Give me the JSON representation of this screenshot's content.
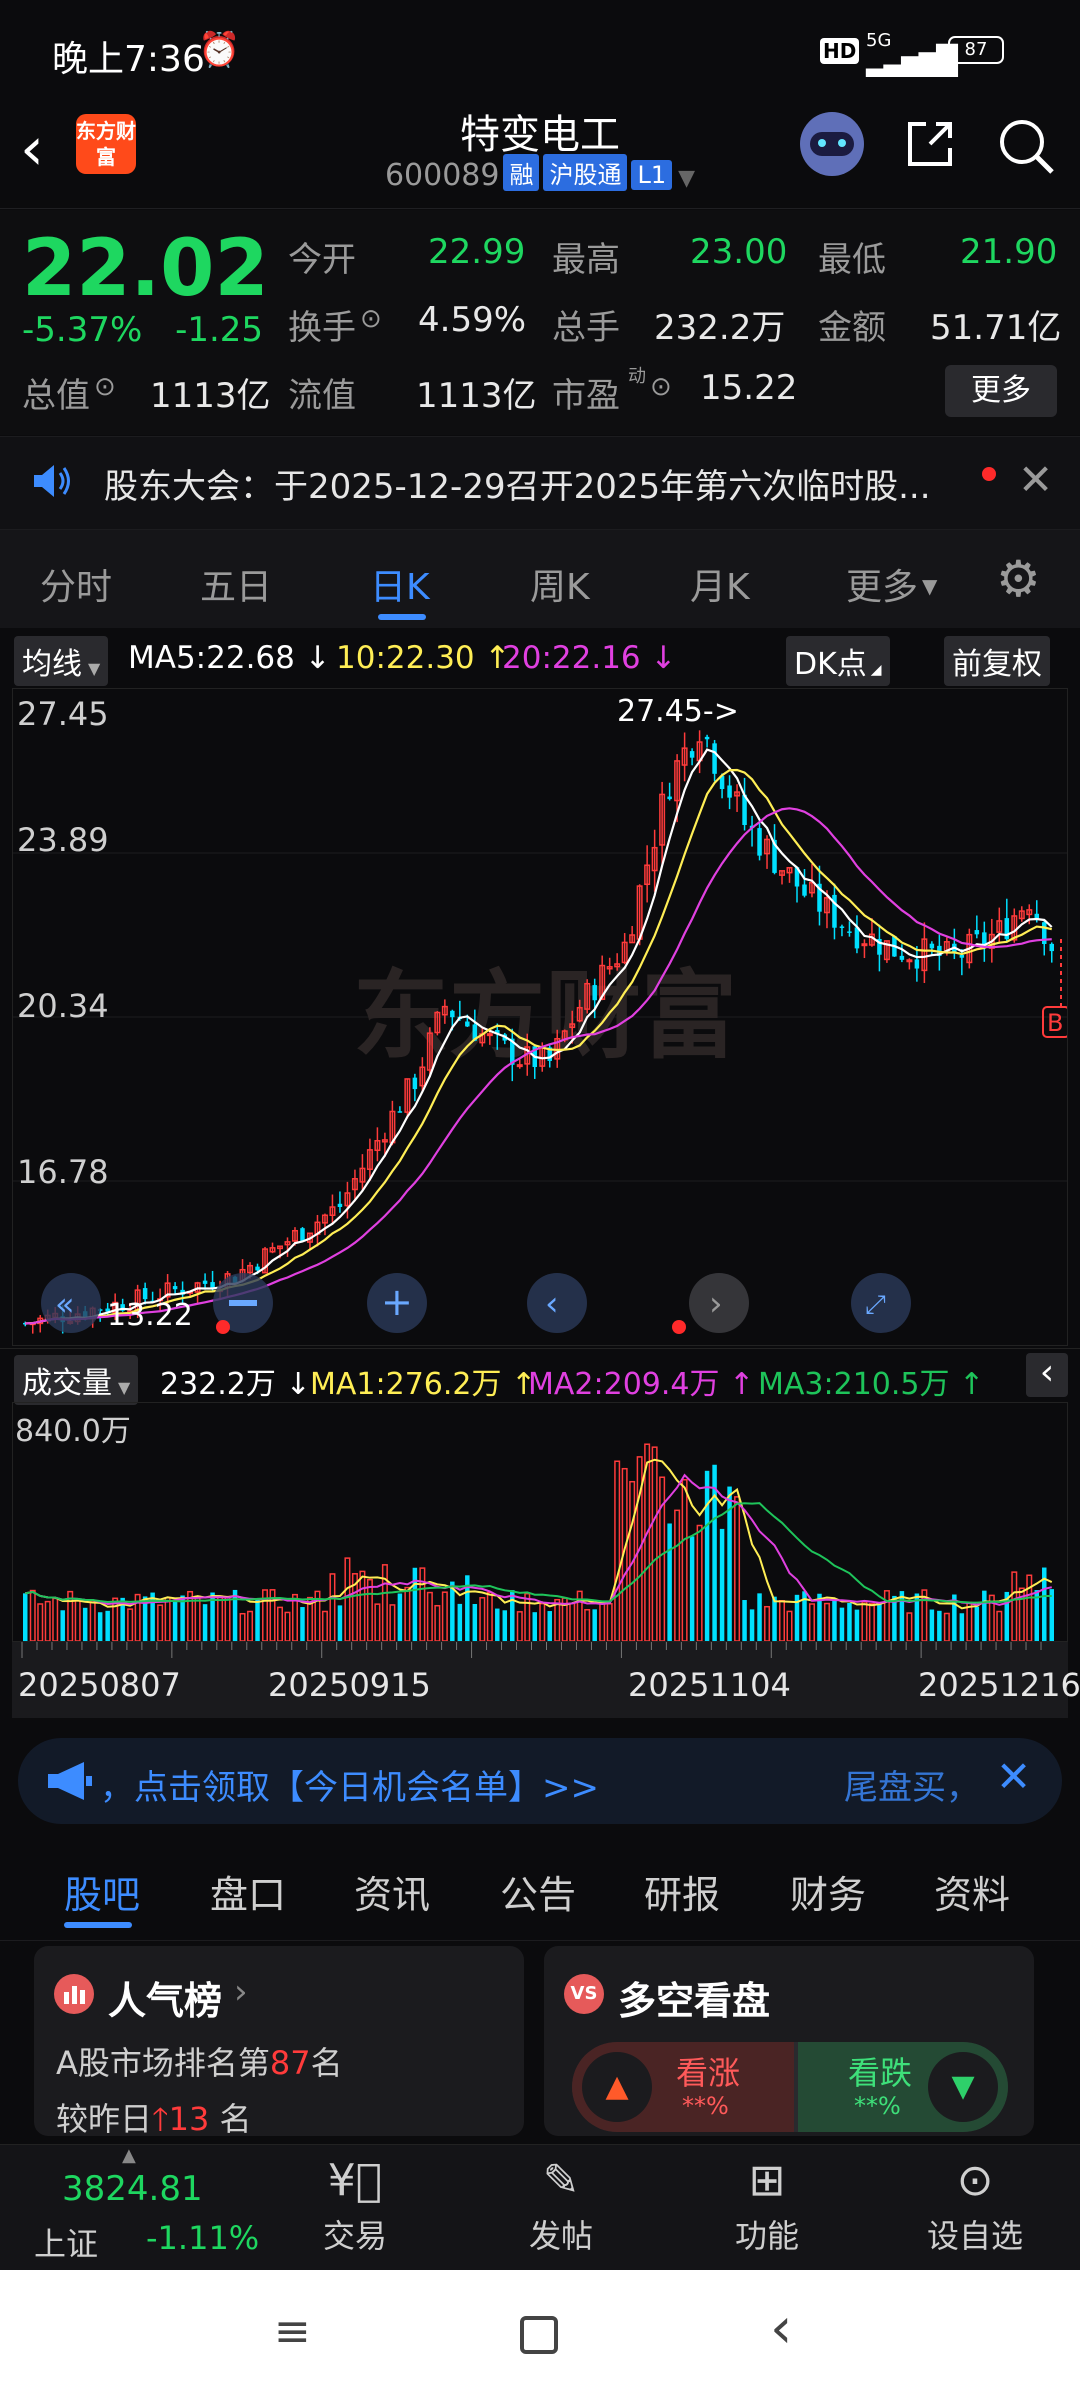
{
  "status": {
    "time": "晚上7:36",
    "battery": "87",
    "network": "5G"
  },
  "header": {
    "logo_text": "东方财富",
    "name": "特变电工",
    "code": "600089",
    "tags": [
      "融",
      "沪股通",
      "L1"
    ]
  },
  "quote": {
    "price": "22.02",
    "change_pct": "-5.37%",
    "change": "-1.25",
    "open_label": "今开",
    "open": "22.99",
    "high_label": "最高",
    "high": "23.00",
    "low_label": "最低",
    "low": "21.90",
    "turnover_label": "换手",
    "turnover": "4.59%",
    "volume_label": "总手",
    "volume": "232.2万",
    "amount_label": "金额",
    "amount": "51.71亿",
    "mcap_label": "总值",
    "mcap": "1113亿",
    "float_label": "流值",
    "float": "1113亿",
    "pe_label": "市盈",
    "pe_sup": "动",
    "pe": "15.22",
    "more_label": "更多"
  },
  "notice": {
    "text": "股东大会：于2025-12-29召开2025年第六次临时股..."
  },
  "tabs": [
    {
      "label": "分时"
    },
    {
      "label": "五日"
    },
    {
      "label": "日K"
    },
    {
      "label": "周K"
    },
    {
      "label": "月K"
    },
    {
      "label": "更多"
    }
  ],
  "ma_row": {
    "selector": "均线",
    "ma5": "MA5:22.68",
    "ma10": "10:22.30",
    "ma20": "20:22.16",
    "dk": "DK点",
    "adjust": "前复权"
  },
  "chart_data": {
    "type": "candlestick",
    "y_ticks": [
      "27.45",
      "23.89",
      "20.34",
      "16.78"
    ],
    "ylim": [
      12.8,
      27.9
    ],
    "high_annotation": "27.45->",
    "low_annotation": "13.22",
    "marker_label": "B",
    "watermark": "东方财富",
    "colors": {
      "up": "#ff3b3b",
      "down": "#00e0ff",
      "ma5": "#ffffff",
      "ma10": "#ffee55",
      "ma20": "#e040e0"
    }
  },
  "volume": {
    "selector": "成交量",
    "value": "232.2万",
    "ma1": "MA1:276.2万",
    "ma2": "MA2:209.4万",
    "ma3": "MA3:210.5万",
    "max_tick": "840.0万"
  },
  "x_axis": {
    "dates": [
      "20250807",
      "20250915",
      "20251104",
      "20251216"
    ]
  },
  "promo": {
    "text": "，点击领取【今日机会名单】>>",
    "right_text": "尾盘买，"
  },
  "sub_tabs": [
    {
      "label": "股吧"
    },
    {
      "label": "盘口"
    },
    {
      "label": "资讯"
    },
    {
      "label": "公告"
    },
    {
      "label": "研报"
    },
    {
      "label": "财务"
    },
    {
      "label": "资料"
    }
  ],
  "card_rank": {
    "title": "人气榜",
    "line1_prefix": "A股市场排名第",
    "rank": "87",
    "line1_suffix": "名",
    "line2_prefix": "较昨日",
    "delta": "13",
    "line2_suffix": "名"
  },
  "card_vote": {
    "title": "多空看盘",
    "bull": "看涨",
    "bull_pct": "**%",
    "bear": "看跌",
    "bear_pct": "**%"
  },
  "bottom_bar": {
    "index_value": "3824.81",
    "index_name": "上证",
    "index_change": "-1.11%",
    "items": [
      {
        "label": "交易"
      },
      {
        "label": "发帖"
      },
      {
        "label": "功能"
      },
      {
        "label": "设自选"
      }
    ]
  }
}
